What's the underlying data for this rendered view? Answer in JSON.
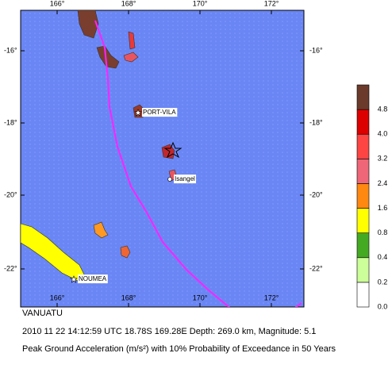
{
  "map": {
    "lon_ticks": [
      "166°",
      "168°",
      "170°",
      "172°"
    ],
    "lat_ticks": [
      "-16°",
      "-18°",
      "-20°",
      "-22°"
    ],
    "places": [
      "PORT-VILA",
      "Isangel",
      "NOUMEA"
    ],
    "legend_labels": [
      "0.0",
      "0.2",
      "0.4",
      "0.8",
      "1.6",
      "2.4",
      "3.2",
      "4.0",
      "4.8"
    ],
    "region": "VANUATU",
    "event": "2010 11 22 14:12:59 UTC 18.78S 169.28E Depth: 269.0 km, Magnitude: 5.1",
    "caption": "Peak Ground Acceleration (m/s²) with 10% Probability of Exceedance in 50 Years"
  }
}
